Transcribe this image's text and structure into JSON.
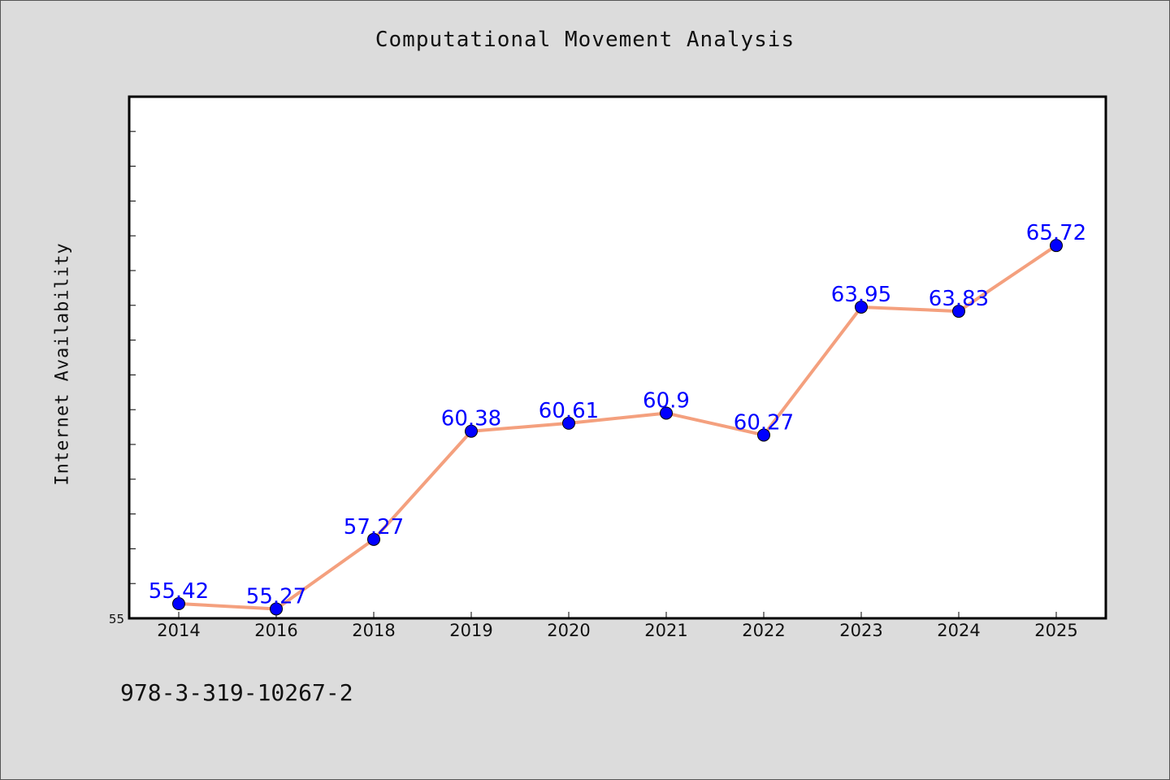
{
  "colors": {
    "background": "#dcdcdc",
    "plot_background": "#ffffff",
    "line": "#f4a07e",
    "marker": "#0000ff",
    "data_label": "#0000ff"
  },
  "footer": {
    "code": "978-3-319-10267-2"
  },
  "chart_data": {
    "type": "line",
    "title": "Computational Movement Analysis",
    "xlabel": "",
    "ylabel": "Internet Availability",
    "categories": [
      "2014",
      "2016",
      "2018",
      "2019",
      "2020",
      "2021",
      "2022",
      "2023",
      "2024",
      "2025"
    ],
    "series": [
      {
        "values": [
          55.42,
          55.27,
          57.27,
          60.38,
          60.61,
          60.9,
          60.27,
          63.95,
          63.83,
          65.72
        ]
      }
    ],
    "data_labels": [
      "55.42",
      "55.27",
      "57.27",
      "60.38",
      "60.61",
      "60.9",
      "60.27",
      "63.95",
      "63.83",
      "65.72"
    ],
    "ylim": [
      55,
      70
    ],
    "y_tick_labels": [
      "55"
    ],
    "y_minor_step": 1,
    "grid": false,
    "legend": "none"
  }
}
